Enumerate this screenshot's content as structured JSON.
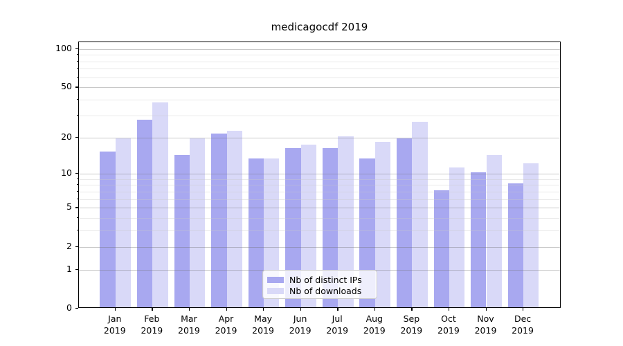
{
  "title": "medicagocdf 2019",
  "chart_data": {
    "type": "bar",
    "title": "medicagocdf 2019",
    "categories": [
      "Jan",
      "Feb",
      "Mar",
      "Apr",
      "May",
      "Jun",
      "Jul",
      "Aug",
      "Sep",
      "Oct",
      "Nov",
      "Dec"
    ],
    "category_year": "2019",
    "series": [
      {
        "name": "Nb of distinct IPs",
        "color": "#a8a8f0",
        "values": [
          15,
          27,
          14,
          21,
          13,
          16,
          16,
          13,
          19,
          7,
          10,
          8
        ]
      },
      {
        "name": "Nb of downloads",
        "color": "#d9d9f8",
        "values": [
          19,
          37,
          19,
          22,
          13,
          17,
          20,
          18,
          26,
          11,
          14,
          12
        ]
      }
    ],
    "xlabel": "",
    "ylabel": "",
    "yscale": "log1p",
    "ylim": [
      0,
      113
    ],
    "yticks": [
      0,
      1,
      2,
      5,
      10,
      20,
      50,
      100
    ],
    "ytick_labels": [
      "0",
      "1",
      "2",
      "5",
      "10",
      "20",
      "50",
      "100"
    ],
    "yticks_minor": [
      3,
      4,
      6,
      7,
      8,
      9,
      30,
      40,
      60,
      70,
      80,
      90
    ],
    "grid": "horizontal major+minor, drawn above bars",
    "legend_position": "lower center"
  },
  "legend": {
    "items": [
      {
        "label": "Nb of distinct IPs",
        "color": "#a8a8f0"
      },
      {
        "label": "Nb of downloads",
        "color": "#d9d9f8"
      }
    ]
  },
  "colors": {
    "background": "#ffffff",
    "axis": "#000000",
    "grid_major": "#c8c8c8",
    "grid_minor": "#e9e9e9",
    "bar_distinct_ips": "#a8a8f0",
    "bar_downloads": "#d9d9f8"
  }
}
